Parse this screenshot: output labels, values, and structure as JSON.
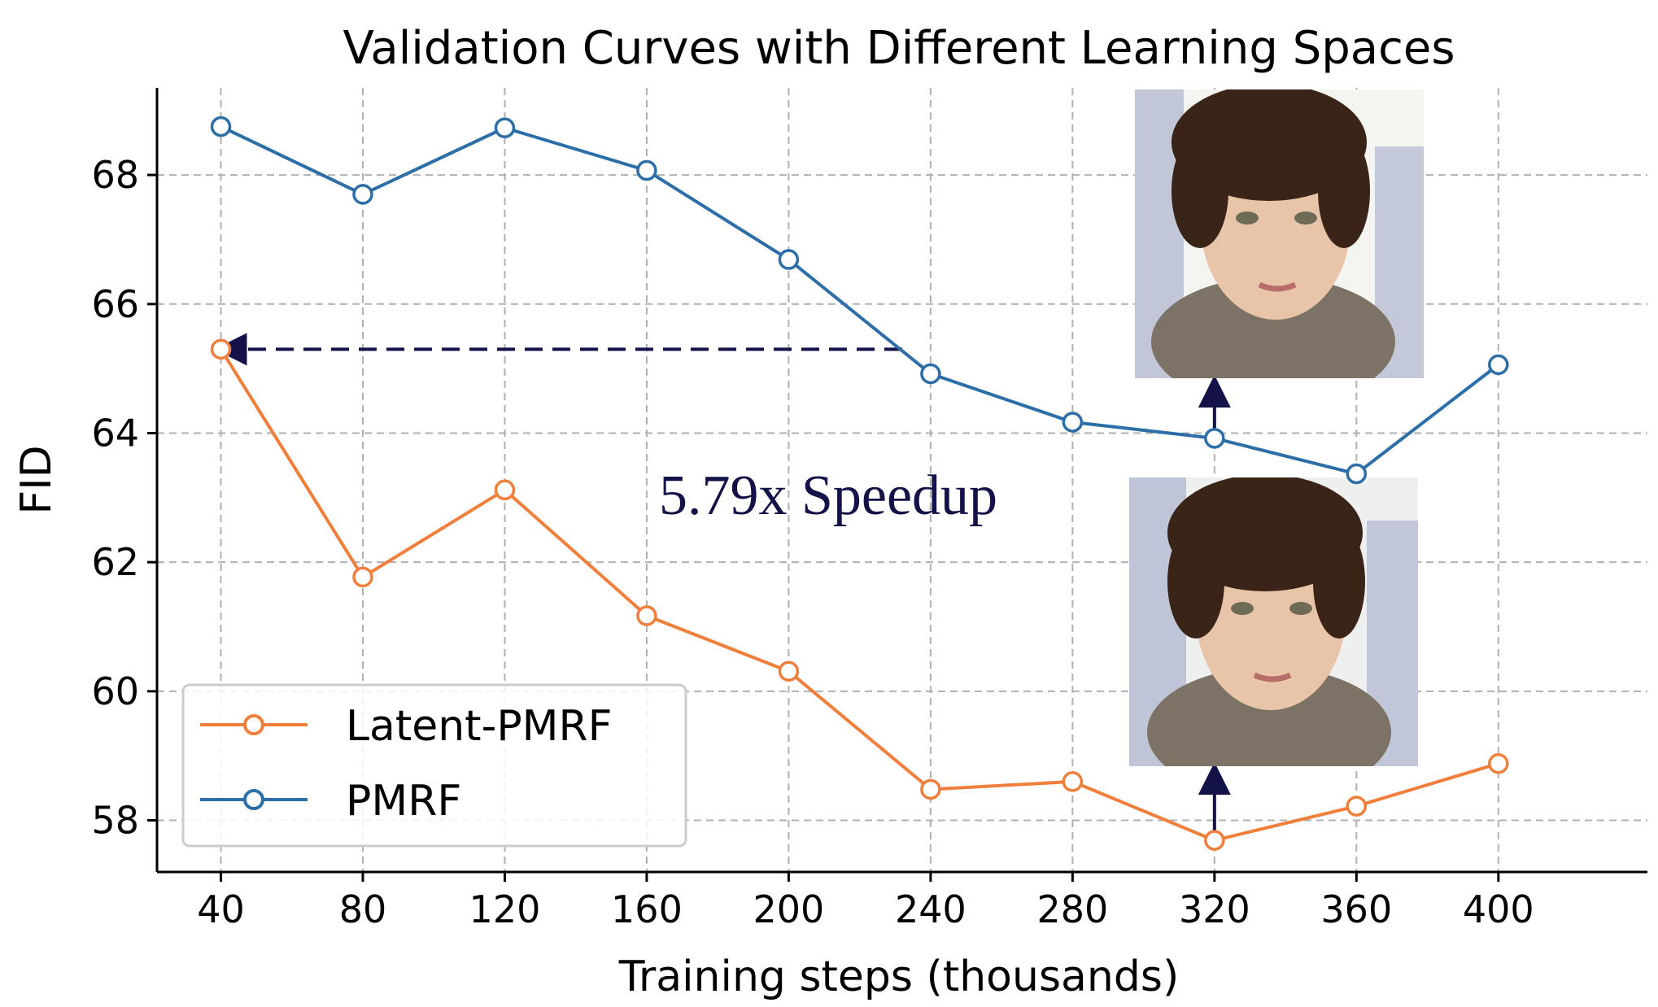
{
  "chart_data": {
    "type": "line",
    "title": "Validation Curves with Different Learning Spaces",
    "xlabel": "Training steps (thousands)",
    "ylabel": "FID",
    "x": [
      40,
      80,
      120,
      160,
      200,
      240,
      280,
      320,
      360,
      400
    ],
    "xticks": [
      40,
      80,
      120,
      160,
      200,
      240,
      280,
      320,
      360,
      400
    ],
    "yticks": [
      58,
      60,
      62,
      64,
      66,
      68
    ],
    "xlim": [
      22,
      442
    ],
    "ylim": [
      57.2,
      69.35
    ],
    "grid": true,
    "legend_position": "lower-left",
    "series": [
      {
        "name": "Latent-PMRF",
        "color": "#f07f3c",
        "values": [
          65.3,
          61.77,
          63.12,
          61.17,
          60.31,
          58.48,
          58.6,
          57.69,
          58.22,
          58.88
        ]
      },
      {
        "name": "PMRF",
        "color": "#2b6ea8",
        "values": [
          68.75,
          67.7,
          68.73,
          68.07,
          66.69,
          64.92,
          64.17,
          63.92,
          63.37,
          65.06
        ]
      }
    ],
    "annotations": [
      {
        "text": "5.79x Speedup",
        "x": 160,
        "y": 63.0
      }
    ],
    "arrows": [
      {
        "kind": "dashed",
        "from_x": 232,
        "from_y": 65.3,
        "to_x": 40,
        "to_y": 65.3
      },
      {
        "kind": "solid",
        "from_x": 320,
        "from_y": 64.0,
        "to_x": 320,
        "to_y": 64.8
      },
      {
        "kind": "solid",
        "from_x": 320,
        "from_y": 57.8,
        "to_x": 320,
        "to_y": 58.8
      }
    ],
    "images": [
      {
        "name": "pmrf-sample-photo",
        "x": 320,
        "y_range": [
          64.8,
          69.2
        ]
      },
      {
        "name": "latent-pmrf-sample-photo",
        "x": 320,
        "y_range": [
          58.8,
          63.3
        ]
      }
    ]
  }
}
